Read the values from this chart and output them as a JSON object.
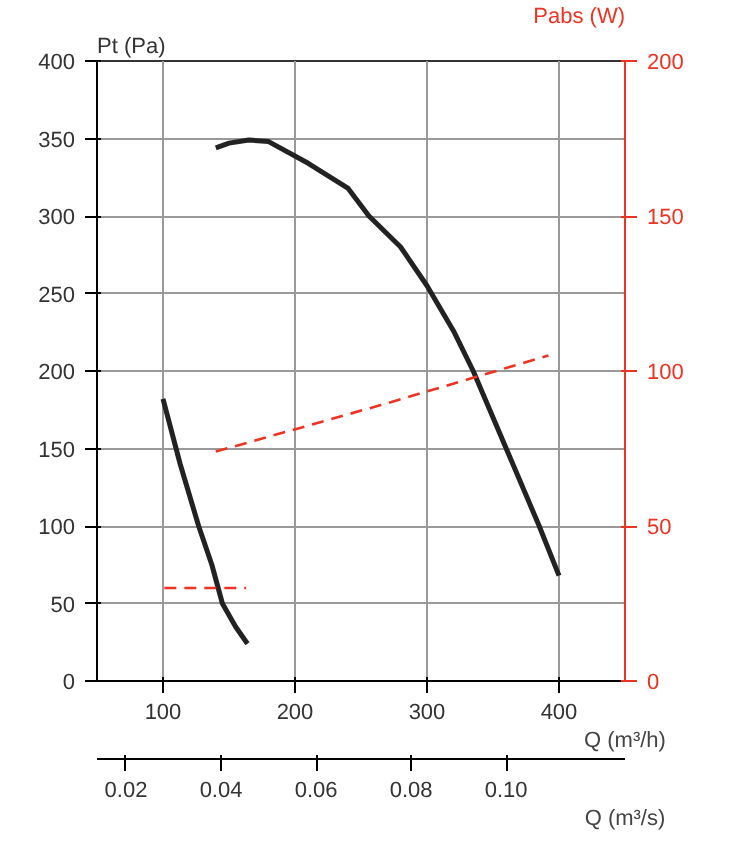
{
  "chart_data": {
    "type": "line",
    "ylabel": "Pt (Pa)",
    "y2label": "Pabs (W)",
    "xlabel": "Q (m³/h)",
    "x2label": "Q (m³/s)",
    "xlim": [
      50,
      450
    ],
    "xticks": [
      100,
      200,
      300,
      400
    ],
    "x2lim": [
      0.0139,
      0.125
    ],
    "x2ticks": [
      0.02,
      0.04,
      0.06,
      0.08,
      {
        "value": 0.1,
        "label": "0.10"
      }
    ],
    "ylim": [
      0,
      400
    ],
    "yticks": [
      0,
      50,
      100,
      150,
      200,
      250,
      300,
      350,
      400
    ],
    "y2lim": [
      0,
      200
    ],
    "y2ticks": [
      0,
      50,
      100,
      150,
      200
    ],
    "grid": true,
    "series": [
      {
        "color": "#222222",
        "line_style": "solid",
        "x": [
          100,
          113,
          127,
          137,
          145,
          155,
          164
        ],
        "values": [
          182,
          140,
          100,
          75,
          50,
          35,
          24
        ]
      },
      {
        "color": "#222222",
        "line_style": "solid",
        "x": [
          140,
          150,
          165,
          180,
          210,
          240,
          256,
          280,
          300,
          320,
          335,
          360,
          385,
          400
        ],
        "values": [
          344,
          347,
          349,
          348,
          334,
          318,
          300,
          280,
          255,
          226,
          200,
          150,
          100,
          68
        ]
      },
      {
        "color": "#ee3322",
        "line_style": "dashed",
        "axis": "y2",
        "x": [
          101,
          163
        ],
        "values": [
          30,
          30
        ]
      },
      {
        "color": "#ee3322",
        "line_style": "dashed",
        "axis": "y2",
        "x": [
          140,
          265,
          392
        ],
        "values": [
          74,
          89,
          105
        ]
      }
    ]
  }
}
